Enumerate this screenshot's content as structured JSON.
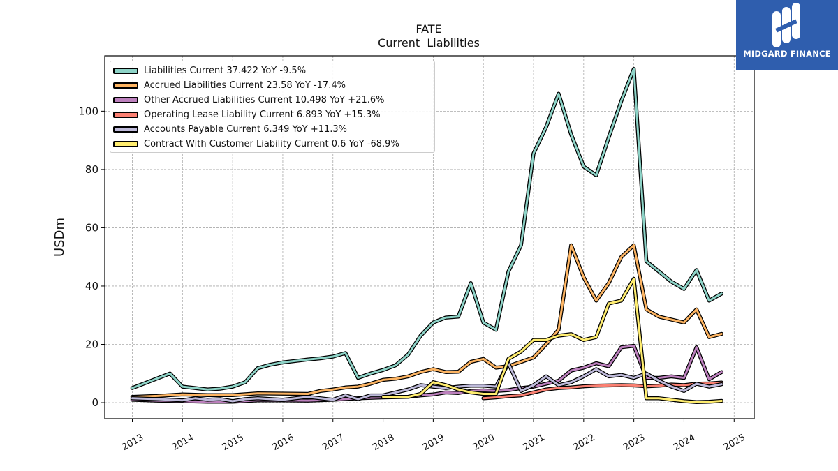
{
  "title": "FATE",
  "subtitle": "Current  Liabilities",
  "brand": {
    "name": "MIDGARD FINANCE",
    "color": "#2f5eae",
    "icon": "midgard-logo-icon"
  },
  "chart_data": {
    "type": "line",
    "ylabel": "USDm",
    "xlabel": "",
    "xlim": [
      2012.45,
      2025.4
    ],
    "ylim": [
      -5.5,
      119
    ],
    "x_ticks": [
      "2013",
      "2014",
      "2015",
      "2016",
      "2017",
      "2018",
      "2019",
      "2020",
      "2021",
      "2022",
      "2023",
      "2024",
      "2025"
    ],
    "y_ticks": [
      "0",
      "20",
      "40",
      "60",
      "80",
      "100"
    ],
    "grid": true,
    "legend_position": "top-left",
    "series": [
      {
        "name": "Liabilities Current  37.422 YoY -9.5%",
        "color": "#8dd3c7",
        "points": [
          [
            2013.0,
            5.0
          ],
          [
            2013.75,
            10.0
          ],
          [
            2014.0,
            5.5
          ],
          [
            2014.25,
            5.0
          ],
          [
            2014.5,
            4.5
          ],
          [
            2014.75,
            4.8
          ],
          [
            2015.0,
            5.5
          ],
          [
            2015.25,
            7.0
          ],
          [
            2015.5,
            11.8
          ],
          [
            2015.75,
            13.0
          ],
          [
            2016.0,
            13.8
          ],
          [
            2016.25,
            14.3
          ],
          [
            2016.5,
            14.8
          ],
          [
            2016.75,
            15.2
          ],
          [
            2017.0,
            15.8
          ],
          [
            2017.25,
            17.0
          ],
          [
            2017.5,
            8.5
          ],
          [
            2017.75,
            10.0
          ],
          [
            2018.0,
            11.2
          ],
          [
            2018.25,
            12.8
          ],
          [
            2018.5,
            16.5
          ],
          [
            2018.75,
            23.0
          ],
          [
            2019.0,
            27.5
          ],
          [
            2019.25,
            29.2
          ],
          [
            2019.5,
            29.5
          ],
          [
            2019.75,
            41.0
          ],
          [
            2020.0,
            27.5
          ],
          [
            2020.25,
            25.0
          ],
          [
            2020.5,
            45.0
          ],
          [
            2020.75,
            54.0
          ],
          [
            2021.0,
            85.5
          ],
          [
            2021.25,
            94.5
          ],
          [
            2021.5,
            106.0
          ],
          [
            2021.75,
            92.0
          ],
          [
            2022.0,
            81.0
          ],
          [
            2022.25,
            78.0
          ],
          [
            2022.5,
            91.0
          ],
          [
            2022.75,
            103.5
          ],
          [
            2023.0,
            114.5
          ],
          [
            2023.25,
            48.5
          ],
          [
            2023.5,
            45.0
          ],
          [
            2023.75,
            41.5
          ],
          [
            2024.0,
            39.0
          ],
          [
            2024.25,
            45.5
          ],
          [
            2024.5,
            35.0
          ],
          [
            2024.75,
            37.4
          ]
        ]
      },
      {
        "name": "Accrued Liabilities Current  23.58 YoY -17.4%",
        "color": "#fdb462",
        "points": [
          [
            2013.0,
            2.0
          ],
          [
            2013.5,
            2.3
          ],
          [
            2014.0,
            2.8
          ],
          [
            2014.5,
            2.6
          ],
          [
            2015.0,
            2.6
          ],
          [
            2015.5,
            3.2
          ],
          [
            2016.0,
            3.1
          ],
          [
            2016.5,
            3.0
          ],
          [
            2016.75,
            4.0
          ],
          [
            2017.0,
            4.5
          ],
          [
            2017.25,
            5.2
          ],
          [
            2017.5,
            5.5
          ],
          [
            2017.75,
            6.5
          ],
          [
            2018.0,
            7.8
          ],
          [
            2018.25,
            8.2
          ],
          [
            2018.5,
            9.0
          ],
          [
            2018.75,
            10.5
          ],
          [
            2019.0,
            11.5
          ],
          [
            2019.25,
            10.5
          ],
          [
            2019.5,
            10.6
          ],
          [
            2019.75,
            14.0
          ],
          [
            2020.0,
            15.0
          ],
          [
            2020.25,
            12.0
          ],
          [
            2020.5,
            12.5
          ],
          [
            2020.75,
            14.0
          ],
          [
            2021.0,
            15.5
          ],
          [
            2021.25,
            20.0
          ],
          [
            2021.5,
            25.0
          ],
          [
            2021.75,
            54.0
          ],
          [
            2022.0,
            43.0
          ],
          [
            2022.25,
            35.0
          ],
          [
            2022.5,
            41.0
          ],
          [
            2022.75,
            50.0
          ],
          [
            2023.0,
            54.0
          ],
          [
            2023.25,
            32.0
          ],
          [
            2023.5,
            29.5
          ],
          [
            2023.75,
            28.5
          ],
          [
            2024.0,
            27.5
          ],
          [
            2024.25,
            32.0
          ],
          [
            2024.5,
            22.5
          ],
          [
            2024.75,
            23.6
          ]
        ]
      },
      {
        "name": "Other Accrued Liabilities Current  10.498 YoY +21.6%",
        "color": "#bc80bd",
        "points": [
          [
            2013.0,
            1.0
          ],
          [
            2013.5,
            0.7
          ],
          [
            2014.0,
            0.5
          ],
          [
            2014.5,
            0.3
          ],
          [
            2015.0,
            0.3
          ],
          [
            2015.5,
            0.8
          ],
          [
            2016.0,
            0.8
          ],
          [
            2016.5,
            0.7
          ],
          [
            2017.0,
            1.0
          ],
          [
            2017.5,
            1.5
          ],
          [
            2018.0,
            1.8
          ],
          [
            2018.5,
            2.0
          ],
          [
            2018.75,
            2.5
          ],
          [
            2019.0,
            2.8
          ],
          [
            2019.25,
            3.5
          ],
          [
            2019.5,
            3.3
          ],
          [
            2019.75,
            4.0
          ],
          [
            2020.0,
            4.2
          ],
          [
            2020.25,
            4.0
          ],
          [
            2020.5,
            4.3
          ],
          [
            2020.75,
            5.0
          ],
          [
            2021.0,
            5.5
          ],
          [
            2021.25,
            6.5
          ],
          [
            2021.5,
            7.5
          ],
          [
            2021.75,
            11.0
          ],
          [
            2022.0,
            12.0
          ],
          [
            2022.25,
            13.5
          ],
          [
            2022.5,
            12.5
          ],
          [
            2022.75,
            19.0
          ],
          [
            2023.0,
            19.5
          ],
          [
            2023.25,
            8.5
          ],
          [
            2023.5,
            8.5
          ],
          [
            2023.75,
            9.0
          ],
          [
            2024.0,
            8.5
          ],
          [
            2024.25,
            19.0
          ],
          [
            2024.5,
            8.0
          ],
          [
            2024.75,
            10.5
          ]
        ]
      },
      {
        "name": "Operating Lease Liability Current  6.893 YoY +15.3%",
        "color": "#fb8072",
        "points": [
          [
            2020.0,
            1.5
          ],
          [
            2020.25,
            1.8
          ],
          [
            2020.5,
            2.2
          ],
          [
            2020.75,
            2.5
          ],
          [
            2021.0,
            3.5
          ],
          [
            2021.25,
            4.5
          ],
          [
            2021.5,
            5.0
          ],
          [
            2021.75,
            5.2
          ],
          [
            2022.0,
            5.6
          ],
          [
            2022.25,
            5.8
          ],
          [
            2022.5,
            5.9
          ],
          [
            2022.75,
            6.0
          ],
          [
            2023.0,
            5.9
          ],
          [
            2023.25,
            5.6
          ],
          [
            2023.5,
            5.8
          ],
          [
            2023.75,
            6.2
          ],
          [
            2024.0,
            6.0
          ],
          [
            2024.25,
            6.5
          ],
          [
            2024.5,
            6.6
          ],
          [
            2024.75,
            6.9
          ]
        ]
      },
      {
        "name": "Accounts Payable Current  6.349 YoY +11.3%",
        "color": "#bebada",
        "points": [
          [
            2013.0,
            1.5
          ],
          [
            2013.5,
            1.2
          ],
          [
            2014.0,
            0.8
          ],
          [
            2014.25,
            1.5
          ],
          [
            2014.5,
            1.0
          ],
          [
            2014.75,
            1.2
          ],
          [
            2015.0,
            0.5
          ],
          [
            2015.25,
            1.2
          ],
          [
            2015.5,
            1.5
          ],
          [
            2016.0,
            1.0
          ],
          [
            2016.25,
            1.5
          ],
          [
            2016.5,
            2.0
          ],
          [
            2016.75,
            1.5
          ],
          [
            2017.0,
            1.0
          ],
          [
            2017.25,
            2.5
          ],
          [
            2017.5,
            1.2
          ],
          [
            2017.75,
            2.5
          ],
          [
            2018.0,
            2.5
          ],
          [
            2018.25,
            3.5
          ],
          [
            2018.5,
            4.5
          ],
          [
            2018.75,
            6.0
          ],
          [
            2019.0,
            5.5
          ],
          [
            2019.25,
            5.0
          ],
          [
            2019.5,
            5.5
          ],
          [
            2019.75,
            5.8
          ],
          [
            2020.0,
            5.8
          ],
          [
            2020.25,
            5.5
          ],
          [
            2020.5,
            13.5
          ],
          [
            2020.75,
            4.0
          ],
          [
            2021.0,
            6.0
          ],
          [
            2021.25,
            9.0
          ],
          [
            2021.5,
            6.0
          ],
          [
            2021.75,
            7.0
          ],
          [
            2022.0,
            9.0
          ],
          [
            2022.25,
            11.5
          ],
          [
            2022.5,
            9.0
          ],
          [
            2022.75,
            9.5
          ],
          [
            2023.0,
            8.5
          ],
          [
            2023.25,
            10.0
          ],
          [
            2023.5,
            7.5
          ],
          [
            2023.75,
            5.5
          ],
          [
            2024.0,
            4.0
          ],
          [
            2024.25,
            6.5
          ],
          [
            2024.5,
            5.5
          ],
          [
            2024.75,
            6.3
          ]
        ]
      },
      {
        "name": "Contract With Customer Liability Current  0.6 YoY -68.9%",
        "color": "#ffed6f",
        "points": [
          [
            2018.0,
            2.0
          ],
          [
            2018.25,
            2.0
          ],
          [
            2018.5,
            2.0
          ],
          [
            2018.75,
            3.0
          ],
          [
            2019.0,
            7.0
          ],
          [
            2019.25,
            6.0
          ],
          [
            2019.5,
            4.5
          ],
          [
            2019.75,
            3.5
          ],
          [
            2020.0,
            3.0
          ],
          [
            2020.25,
            3.0
          ],
          [
            2020.5,
            15.0
          ],
          [
            2020.75,
            17.5
          ],
          [
            2021.0,
            21.5
          ],
          [
            2021.25,
            21.5
          ],
          [
            2021.5,
            23.0
          ],
          [
            2021.75,
            23.5
          ],
          [
            2022.0,
            21.5
          ],
          [
            2022.25,
            22.5
          ],
          [
            2022.5,
            34.0
          ],
          [
            2022.75,
            35.0
          ],
          [
            2023.0,
            42.5
          ],
          [
            2023.25,
            1.5
          ],
          [
            2023.5,
            1.5
          ],
          [
            2023.75,
            1.0
          ],
          [
            2024.0,
            0.5
          ],
          [
            2024.25,
            0.2
          ],
          [
            2024.5,
            0.3
          ],
          [
            2024.75,
            0.6
          ]
        ]
      }
    ]
  }
}
